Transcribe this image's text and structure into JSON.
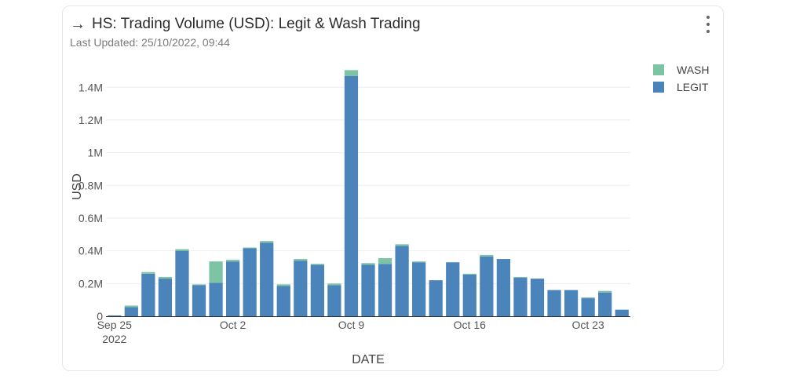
{
  "header": {
    "arrow_icon": "arrow-right-icon",
    "title": "HS: Trading Volume (USD): Legit & Wash Trading",
    "subtitle": "Last Updated: 25/10/2022, 09:44",
    "menu_icon": "kebab-menu-icon"
  },
  "colors": {
    "legit": "#4a84bb",
    "wash": "#7cc4a3",
    "grid": "#eeeeee",
    "axis": "#333333"
  },
  "chart_data": {
    "type": "bar",
    "stacked": true,
    "xlabel": "DATE",
    "ylabel": "USD",
    "ylim": [
      0,
      1550000
    ],
    "yticks": [
      0,
      200000,
      400000,
      600000,
      800000,
      1000000,
      1200000,
      1400000
    ],
    "ytick_labels": [
      "0",
      "0.2M",
      "0.4M",
      "0.6M",
      "0.8M",
      "1M",
      "1.2M",
      "1.4M"
    ],
    "xtick_labels": [
      {
        "date": "2022-09-25",
        "line1": "Sep 25",
        "line2": "2022"
      },
      {
        "date": "2022-10-02",
        "line1": "Oct 2",
        "line2": ""
      },
      {
        "date": "2022-10-09",
        "line1": "Oct 9",
        "line2": ""
      },
      {
        "date": "2022-10-16",
        "line1": "Oct 16",
        "line2": ""
      },
      {
        "date": "2022-10-23",
        "line1": "Oct 23",
        "line2": ""
      }
    ],
    "legend": [
      "WASH",
      "LEGIT"
    ],
    "legend_position": "top-right",
    "dates": [
      "2022-09-25",
      "2022-09-26",
      "2022-09-27",
      "2022-09-28",
      "2022-09-29",
      "2022-09-30",
      "2022-10-01",
      "2022-10-02",
      "2022-10-03",
      "2022-10-04",
      "2022-10-05",
      "2022-10-06",
      "2022-10-07",
      "2022-10-08",
      "2022-10-09",
      "2022-10-10",
      "2022-10-11",
      "2022-10-12",
      "2022-10-13",
      "2022-10-14",
      "2022-10-15",
      "2022-10-16",
      "2022-10-17",
      "2022-10-18",
      "2022-10-19",
      "2022-10-20",
      "2022-10-21",
      "2022-10-22",
      "2022-10-23",
      "2022-10-24",
      "2022-10-25"
    ],
    "series": [
      {
        "name": "LEGIT",
        "values": [
          5000,
          55000,
          260000,
          230000,
          400000,
          190000,
          205000,
          335000,
          415000,
          450000,
          185000,
          340000,
          315000,
          190000,
          1470000,
          315000,
          320000,
          430000,
          330000,
          220000,
          330000,
          255000,
          365000,
          350000,
          235000,
          230000,
          160000,
          160000,
          110000,
          145000,
          40000
        ]
      },
      {
        "name": "WASH",
        "values": [
          0,
          10000,
          10000,
          10000,
          10000,
          5000,
          130000,
          10000,
          5000,
          10000,
          10000,
          10000,
          5000,
          10000,
          35000,
          10000,
          35000,
          10000,
          5000,
          0,
          0,
          5000,
          10000,
          0,
          5000,
          0,
          0,
          0,
          5000,
          10000,
          0
        ]
      }
    ]
  }
}
